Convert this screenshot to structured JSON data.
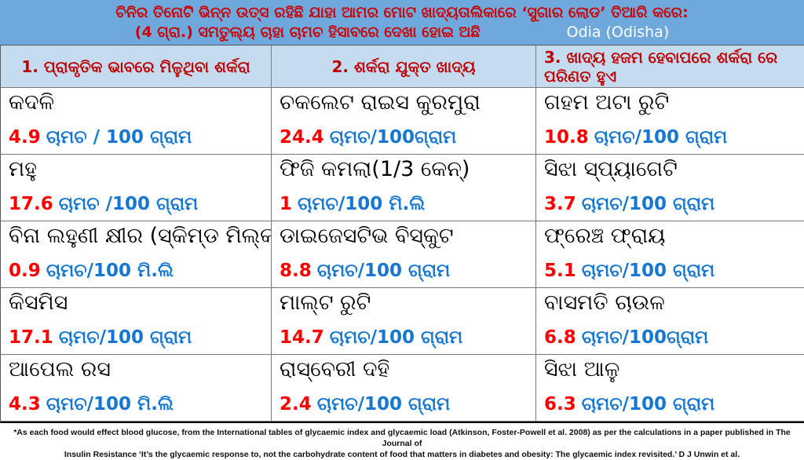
{
  "banner": {
    "line1": "ଚିନିର ତିନୋଟି ଭିନ୍ନ ଉତ୍ସ ରହିଛି ଯାହା ଆମର ମୋଟ ଖାଦ୍ୟତାଲିକାରେ ‘ସୁଗାର ଲୋଡ’ ତିଆରି କରେ:",
    "line2": "(4 ଗ୍ରା.) ସମତୁଲ୍ୟ ଚାହା ଚାମଚ ହିସାବରେ ଦେଖା ହୋଇ ଅଛି",
    "language_label": "Odia (Odisha)"
  },
  "table": {
    "headers": [
      "1. ପ୍ରାକୃତିକ ଭାବରେ ମିଳୁଥିବା ଶର୍କରା",
      "2. ଶର୍କରା ଯୁକ୍ତ ଖାଦ୍ୟ",
      "3. ଖାଦ୍ୟ ହଜମ ହେବାପରେ ଶର୍କରା ରେ ପରିଣତ ହୁଏ"
    ],
    "rows": [
      [
        {
          "name": "କଦଳି",
          "amount": "4.9",
          "unit": "ଚାମଚ / 100 ଗ୍ରାମ"
        },
        {
          "name": "ଚକଲେଟ ରାଇସ କୁରମୁରା",
          "amount": "24.4",
          "unit": "ଚାମଚ/100ଗ୍ରାମ"
        },
        {
          "name": "ଗହମ ଅଟା ରୁଟି",
          "amount": "10.8",
          "unit": "ଚାମଚ/100 ଗ୍ରାମ"
        }
      ],
      [
        {
          "name": "ମହୁ",
          "amount": "17.6",
          "unit": "ଚାମଚ /100 ଗ୍ରାମ"
        },
        {
          "name": "ଫିଜି କମଲା(1/3 କେନ୍)",
          "amount": "1",
          "unit": "ଚାମଚ/100 ମି.ଲି"
        },
        {
          "name": "ସିଝା ସ୍ପ୍ୟାଗେଟି",
          "amount": "3.7",
          "unit": "ଚାମଚ/100 ଗ୍ରାମ"
        }
      ],
      [
        {
          "name": "ବିନା ଲହୁଣୀ କ୍ଷୀର (ସ୍କିମ୍ଡ ମିଲ୍କ)",
          "amount": "0.9",
          "unit": "ଚାମଚ/100 ମି.ଲି"
        },
        {
          "name": "ଡାଇଜେସଟିଭ ବିସ୍କୁଟ",
          "amount": "8.8",
          "unit": "ଚାମଚ/100 ଗ୍ରାମ"
        },
        {
          "name": "ଫ୍ରେଞ୍ଚ ଫ୍ରାୟ",
          "amount": "5.1",
          "unit": "ଚାମଚ/100 ଗ୍ରାମ"
        }
      ],
      [
        {
          "name": "କିସମିସ",
          "amount": "17.1",
          "unit": "ଚାମଚ/100 ଗ୍ରାମ"
        },
        {
          "name": "ମାଲ୍ଟ ରୁଟି",
          "amount": "14.7",
          "unit": "ଚାମଚ/100 ଗ୍ରାମ"
        },
        {
          "name": "ବାସମତି ଚାଉଳ",
          "amount": "6.8",
          "unit": "ଚାମଚ/100ଗ୍ରାମ"
        }
      ],
      [
        {
          "name": "ଆପେଲ ରସ",
          "amount": "4.3",
          "unit": "ଚାମଚ/100 ମି.ଲି"
        },
        {
          "name": "ରାସ୍ବେରୀ ଦହି",
          "amount": "2.4",
          "unit": "ଚାମଚ/100 ଗ୍ରାମ"
        },
        {
          "name": "ସିଝା ଆଳୁ",
          "amount": "6.3",
          "unit": "ଚାମଚ/100 ଗ୍ରାମ"
        }
      ]
    ]
  },
  "footer": {
    "line1": "*As each food would effect blood glucose, from the International tables of glycaemic index and glycaemic load (Atkinson, Foster-Powell et al. 2008) as per the calculations in a paper published in The Journal of",
    "line2": "Insulin Resistance ‘It’s the glycaemic response to, not the carbohydrate content of food that matters in diabetes and obesity: The glycaemic index revisited.’ D J Unwin et al."
  },
  "colors": {
    "banner_bg": "#6FA8DC",
    "banner_text": "#CC0000",
    "header_bg": "#C5DCF0",
    "header_text": "#C00000",
    "amount_red": "#FF0000",
    "unit_blue": "#1577D2"
  }
}
